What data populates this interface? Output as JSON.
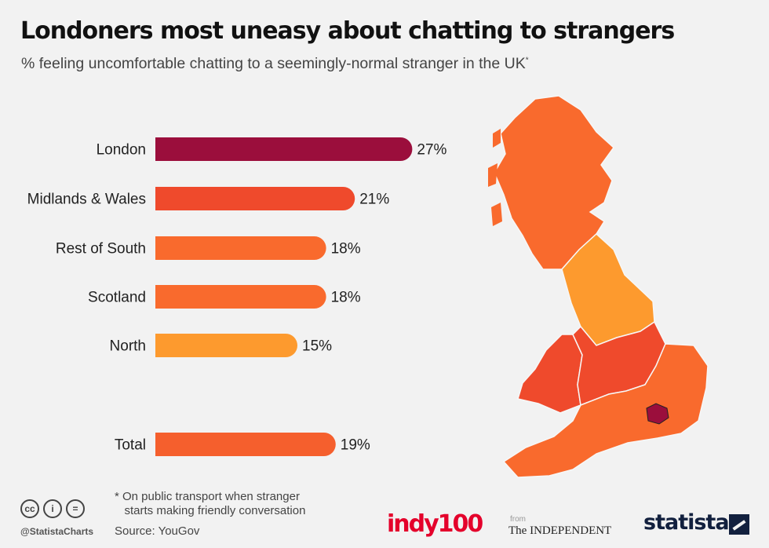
{
  "title": "Londoners most uneasy about chatting to strangers",
  "subtitle": "% feeling uncomfortable chatting to a seemingly-normal stranger in the UK",
  "subtitle_marker": "*",
  "chart_data": {
    "type": "bar",
    "orientation": "horizontal",
    "categories": [
      "London",
      "Midlands & Wales",
      "Rest of South",
      "Scotland",
      "North",
      "Total"
    ],
    "values": [
      27,
      21,
      18,
      18,
      15,
      19
    ],
    "value_labels": [
      "27%",
      "21%",
      "18%",
      "18%",
      "15%",
      "19%"
    ],
    "unit": "%",
    "bar_colors": [
      "#9b0e3c",
      "#ef4a2c",
      "#f96a2d",
      "#f96a2d",
      "#fd9a2e",
      "#f55f2d"
    ],
    "title": "Londoners most uneasy about chatting to strangers",
    "grid": false,
    "legend": "none"
  },
  "map": {
    "description_regions": [
      "Scotland",
      "North",
      "Midlands & Wales",
      "Rest of South",
      "London"
    ],
    "colors": {
      "Scotland": "#f96a2d",
      "North": "#fd9a2e",
      "Midlands & Wales": "#ef4a2c",
      "Rest of South": "#f96a2d",
      "London": "#9b0e3c"
    }
  },
  "footer": {
    "footnote": "* On public transport when stranger\n   starts making friendly conversation",
    "source": "Source: YouGov",
    "handle": "@StatistaCharts",
    "cc_icons": [
      "cc",
      "i",
      "="
    ],
    "logo_indy": "indy100",
    "from_text": "from",
    "logo_independent": "The INDEPENDENT",
    "logo_statista": "statista"
  }
}
